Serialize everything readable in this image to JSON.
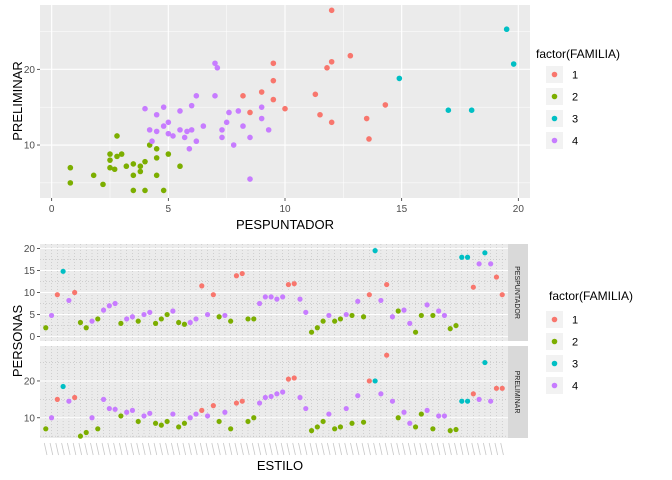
{
  "colors": {
    "1": "#F8766D",
    "2": "#7CAE00",
    "3": "#00BFC4",
    "4": "#C77CFF",
    "panel_bg": "#EBEBEB",
    "grid_major": "#FFFFFF",
    "strip_bg": "#D9D9D9"
  },
  "chart_data": [
    {
      "type": "scatter",
      "xlabel": "PESPUNTADOR",
      "ylabel": "PRELIMINAR",
      "xlim": [
        -0.5,
        20.5
      ],
      "ylim": [
        3,
        28.5
      ],
      "xticks": [
        0,
        5,
        10,
        15,
        20
      ],
      "xtick_labels": [
        "0",
        "5",
        "10",
        "15",
        "20"
      ],
      "yticks": [
        10,
        20
      ],
      "ytick_labels": [
        "10",
        "20"
      ],
      "grid": true,
      "legend": {
        "title": "factor(FAMILIA)",
        "position": "right",
        "entries": [
          "1",
          "2",
          "3",
          "4"
        ]
      },
      "series": [
        {
          "name": "1",
          "points": [
            [
              12.0,
              27.8
            ],
            [
              9.5,
              20.8
            ],
            [
              12.8,
              21.8
            ],
            [
              11.8,
              20.2
            ],
            [
              12.0,
              21.0
            ],
            [
              11.3,
              16.7
            ],
            [
              10.0,
              14.8
            ],
            [
              9.0,
              17.0
            ],
            [
              8.2,
              16.5
            ],
            [
              9.5,
              16.0
            ],
            [
              8.5,
              14.3
            ],
            [
              11.5,
              14.0
            ],
            [
              12.0,
              13.0
            ],
            [
              13.5,
              13.5
            ],
            [
              13.6,
              10.8
            ],
            [
              14.3,
              15.3
            ],
            [
              9.5,
              18.5
            ]
          ]
        },
        {
          "name": "2",
          "points": [
            [
              0.8,
              7.0
            ],
            [
              0.8,
              5.0
            ],
            [
              1.8,
              6.0
            ],
            [
              2.2,
              4.8
            ],
            [
              2.5,
              7.0
            ],
            [
              2.5,
              8.0
            ],
            [
              2.5,
              8.8
            ],
            [
              2.7,
              6.8
            ],
            [
              2.8,
              11.2
            ],
            [
              2.8,
              8.5
            ],
            [
              3.0,
              8.8
            ],
            [
              3.2,
              7.2
            ],
            [
              3.5,
              7.5
            ],
            [
              3.5,
              4.0
            ],
            [
              3.8,
              6.5
            ],
            [
              3.8,
              7.2
            ],
            [
              4.0,
              7.8
            ],
            [
              4.0,
              4.0
            ],
            [
              4.2,
              10.0
            ],
            [
              4.5,
              6.0
            ],
            [
              4.5,
              8.3
            ],
            [
              4.8,
              4.0
            ],
            [
              5.0,
              8.8
            ],
            [
              5.5,
              7.2
            ],
            [
              4.5,
              9.5
            ],
            [
              3.5,
              6.0
            ]
          ]
        },
        {
          "name": "3",
          "points": [
            [
              19.5,
              25.3
            ],
            [
              19.8,
              20.7
            ],
            [
              14.9,
              18.8
            ],
            [
              17.0,
              14.6
            ],
            [
              18.0,
              14.6
            ]
          ]
        },
        {
          "name": "4",
          "points": [
            [
              4.0,
              14.8
            ],
            [
              4.2,
              12.0
            ],
            [
              4.3,
              10.5
            ],
            [
              4.5,
              11.8
            ],
            [
              4.5,
              14.0
            ],
            [
              4.8,
              15.0
            ],
            [
              4.8,
              12.5
            ],
            [
              5.0,
              13.0
            ],
            [
              5.0,
              11.5
            ],
            [
              5.2,
              11.2
            ],
            [
              5.5,
              12.0
            ],
            [
              5.7,
              11.0
            ],
            [
              5.8,
              11.8
            ],
            [
              5.9,
              9.5
            ],
            [
              6.0,
              15.2
            ],
            [
              6.0,
              12.0
            ],
            [
              6.2,
              10.5
            ],
            [
              6.2,
              16.5
            ],
            [
              7.0,
              20.8
            ],
            [
              7.1,
              20.2
            ],
            [
              7.0,
              16.5
            ],
            [
              7.3,
              12.0
            ],
            [
              7.3,
              11.0
            ],
            [
              7.5,
              13.0
            ],
            [
              7.6,
              14.3
            ],
            [
              8.0,
              14.5
            ],
            [
              8.2,
              12.5
            ],
            [
              8.5,
              11.0
            ],
            [
              8.5,
              5.5
            ],
            [
              9.0,
              13.5
            ],
            [
              9.3,
              12.0
            ],
            [
              9.0,
              15.0
            ],
            [
              7.8,
              10.0
            ],
            [
              6.5,
              12.5
            ],
            [
              5.5,
              14.5
            ]
          ]
        }
      ]
    },
    {
      "type": "scatter",
      "xlabel": "ESTILO",
      "ylabel": "PERSONAS",
      "facets": [
        "PESPUNTADOR",
        "PRELIMINAR"
      ],
      "facet_ylims": [
        [
          -1,
          21
        ],
        [
          4.5,
          29.5
        ]
      ],
      "facet_yticks": [
        [
          0,
          5,
          10,
          15,
          20
        ],
        [
          10,
          20
        ]
      ],
      "facet_ytick_labels": [
        [
          "0",
          "5",
          "10",
          "15",
          "20"
        ],
        [
          "10",
          "20"
        ]
      ],
      "x_count": 80,
      "xtick_labels_legible": false,
      "grid": true,
      "legend": {
        "title": "factor(FAMILIA)",
        "position": "right",
        "entries": [
          "1",
          "2",
          "3",
          "4"
        ]
      },
      "familia": [
        2,
        4,
        1,
        3,
        4,
        1,
        2,
        2,
        4,
        2,
        4,
        4,
        4,
        2,
        4,
        4,
        2,
        4,
        4,
        2,
        2,
        2,
        4,
        2,
        2,
        4,
        4,
        1,
        4,
        1,
        2,
        4,
        2,
        1,
        1,
        2,
        2,
        4,
        4,
        4,
        4,
        4,
        1,
        1,
        4,
        4,
        2,
        2,
        2,
        4,
        2,
        2,
        4,
        2,
        4,
        2,
        1,
        3,
        4,
        1,
        4,
        2,
        4,
        4,
        2,
        2,
        4,
        2,
        4,
        4,
        2,
        2,
        3,
        3,
        1,
        4,
        3,
        4,
        1,
        1
      ],
      "pespuntador": [
        2.0,
        4.8,
        9.5,
        14.8,
        8.2,
        10.0,
        3.2,
        2.0,
        3.5,
        4.0,
        6.0,
        7.0,
        7.5,
        3.0,
        4.0,
        4.5,
        3.5,
        5.0,
        5.5,
        3.0,
        4.0,
        5.0,
        5.8,
        3.2,
        2.8,
        3.2,
        4.0,
        11.5,
        5.0,
        9.5,
        4.5,
        4.8,
        3.5,
        13.8,
        14.3,
        4.0,
        4.0,
        7.5,
        9.0,
        9.0,
        8.5,
        9.0,
        11.8,
        12.0,
        8.5,
        5.5,
        1.0,
        2.0,
        3.5,
        4.8,
        3.5,
        4.0,
        5.0,
        4.8,
        8.0,
        4.5,
        9.5,
        19.5,
        8.2,
        11.8,
        4.5,
        5.8,
        6.0,
        3.0,
        1.0,
        4.8,
        7.2,
        4.8,
        5.8,
        4.8,
        1.8,
        2.5,
        18.0,
        18.0,
        11.2,
        16.5,
        19.0,
        16.5,
        13.5,
        9.5
      ],
      "preliminar": [
        7.0,
        10.0,
        15.0,
        18.5,
        14.5,
        15.5,
        5.0,
        6.0,
        10.0,
        7.0,
        15.0,
        12.5,
        12.3,
        10.5,
        11.5,
        12.0,
        9.0,
        10.5,
        11.2,
        8.5,
        8.0,
        9.0,
        11.0,
        7.5,
        8.5,
        10.0,
        11.0,
        12.0,
        10.5,
        13.3,
        9.0,
        11.5,
        7.0,
        14.0,
        14.5,
        9.0,
        10.0,
        14.0,
        15.5,
        15.8,
        16.5,
        17.0,
        20.5,
        20.8,
        15.5,
        12.5,
        6.5,
        7.5,
        9.0,
        11.0,
        7.0,
        7.5,
        12.5,
        8.5,
        16.0,
        8.8,
        20.0,
        20.0,
        16.5,
        27.0,
        14.5,
        10.0,
        11.5,
        8.5,
        7.5,
        11.0,
        12.0,
        7.0,
        10.5,
        10.5,
        6.5,
        6.8,
        14.5,
        14.5,
        16.5,
        15.0,
        25.0,
        14.5,
        18.0,
        18.0
      ]
    }
  ]
}
